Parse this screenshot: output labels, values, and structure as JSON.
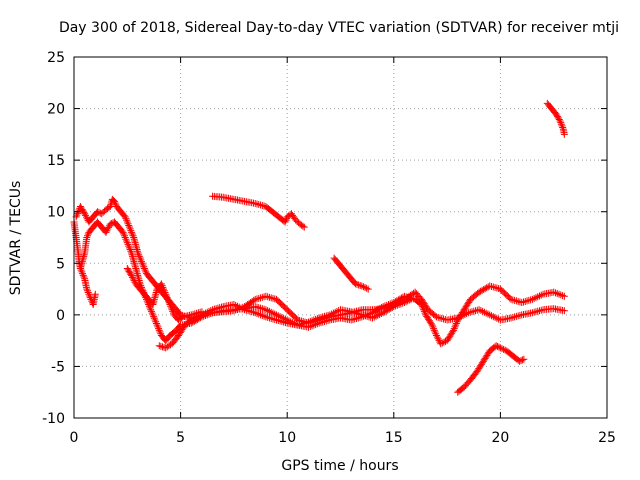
{
  "chart_data": {
    "type": "scatter",
    "title": "Day 300 of 2018, Sidereal Day-to-day VTEC variation (SDTVAR) for receiver mtji",
    "xlabel": "GPS time / hours",
    "ylabel": "SDTVAR / TECUs",
    "xlim": [
      0,
      25
    ],
    "ylim": [
      -10,
      25
    ],
    "xticks": [
      0,
      5,
      10,
      15,
      20,
      25
    ],
    "yticks": [
      -10,
      -5,
      0,
      5,
      10,
      15,
      20,
      25
    ],
    "xtick_labels": [
      "0",
      "5",
      "10",
      "15",
      "20",
      "25"
    ],
    "ytick_labels": [
      "-10",
      "-5",
      "0",
      "5",
      "10",
      "15",
      "20",
      "25"
    ],
    "grid": true,
    "marker": "+",
    "color": "#ff0000",
    "series": [
      {
        "name": "track-1",
        "points": [
          [
            0.0,
            9.0
          ],
          [
            0.1,
            7.5
          ],
          [
            0.2,
            6.0
          ],
          [
            0.25,
            5.0
          ],
          [
            0.3,
            4.5
          ],
          [
            0.4,
            4.0
          ],
          [
            0.5,
            3.5
          ],
          [
            0.55,
            3.0
          ],
          [
            0.6,
            2.5
          ],
          [
            0.7,
            2.0
          ],
          [
            0.8,
            1.5
          ],
          [
            0.9,
            1.0
          ],
          [
            1.0,
            2.0
          ]
        ]
      },
      {
        "name": "track-2",
        "points": [
          [
            0.1,
            9.5
          ],
          [
            0.2,
            10.0
          ],
          [
            0.3,
            10.5
          ],
          [
            0.5,
            9.8
          ],
          [
            0.7,
            9.0
          ],
          [
            0.9,
            9.5
          ],
          [
            1.1,
            10.0
          ],
          [
            1.3,
            9.8
          ],
          [
            1.5,
            10.2
          ],
          [
            1.7,
            10.5
          ],
          [
            1.8,
            11.2
          ],
          [
            1.9,
            11.0
          ],
          [
            2.0,
            10.5
          ],
          [
            2.2,
            10.0
          ],
          [
            2.4,
            9.5
          ],
          [
            2.6,
            8.5
          ],
          [
            2.8,
            7.5
          ],
          [
            3.0,
            6.0
          ],
          [
            3.2,
            5.0
          ],
          [
            3.4,
            4.0
          ],
          [
            3.6,
            3.5
          ],
          [
            3.8,
            3.0
          ],
          [
            4.0,
            2.5
          ],
          [
            4.2,
            2.0
          ],
          [
            4.4,
            1.5
          ],
          [
            4.6,
            1.0
          ],
          [
            4.8,
            0.5
          ],
          [
            5.0,
            0.0
          ],
          [
            5.5,
            -0.3
          ],
          [
            6.0,
            0.0
          ],
          [
            6.5,
            0.2
          ],
          [
            7.0,
            0.4
          ],
          [
            7.5,
            0.5
          ],
          [
            8.0,
            0.6
          ],
          [
            8.5,
            0.8
          ],
          [
            9.0,
            0.5
          ],
          [
            9.5,
            0.0
          ],
          [
            10.0,
            -0.5
          ],
          [
            10.5,
            -1.0
          ],
          [
            11.0,
            -1.2
          ],
          [
            11.5,
            -0.8
          ],
          [
            12.0,
            -0.5
          ],
          [
            12.5,
            -0.3
          ],
          [
            13.0,
            -0.5
          ],
          [
            13.5,
            -0.2
          ],
          [
            14.0,
            0.2
          ],
          [
            14.5,
            0.8
          ],
          [
            15.0,
            1.2
          ],
          [
            15.5,
            1.8
          ],
          [
            16.0,
            1.5
          ],
          [
            16.3,
            1.0
          ],
          [
            16.5,
            0.0
          ],
          [
            16.8,
            -1.0
          ],
          [
            17.0,
            -2.0
          ],
          [
            17.2,
            -2.8
          ],
          [
            17.5,
            -2.5
          ],
          [
            17.8,
            -1.5
          ],
          [
            18.0,
            -0.5
          ],
          [
            18.3,
            0.5
          ],
          [
            18.6,
            1.5
          ],
          [
            19.0,
            2.2
          ],
          [
            19.5,
            2.8
          ],
          [
            20.0,
            2.5
          ],
          [
            20.5,
            1.5
          ],
          [
            21.0,
            1.2
          ],
          [
            21.5,
            1.5
          ],
          [
            22.0,
            2.0
          ],
          [
            22.5,
            2.2
          ],
          [
            23.0,
            1.8
          ]
        ]
      },
      {
        "name": "track-3",
        "points": [
          [
            0.3,
            4.5
          ],
          [
            0.5,
            6.0
          ],
          [
            0.6,
            7.5
          ],
          [
            0.7,
            8.0
          ],
          [
            0.9,
            8.5
          ],
          [
            1.1,
            9.0
          ],
          [
            1.3,
            8.5
          ],
          [
            1.5,
            8.0
          ],
          [
            1.7,
            8.8
          ],
          [
            1.9,
            9.0
          ],
          [
            2.1,
            8.5
          ],
          [
            2.3,
            8.0
          ],
          [
            2.5,
            7.0
          ],
          [
            2.7,
            6.0
          ],
          [
            2.9,
            4.5
          ],
          [
            3.1,
            3.0
          ],
          [
            3.3,
            2.0
          ],
          [
            3.5,
            1.0
          ],
          [
            3.7,
            0.0
          ],
          [
            3.9,
            -1.0
          ],
          [
            4.1,
            -2.0
          ],
          [
            4.3,
            -2.5
          ],
          [
            4.5,
            -2.0
          ],
          [
            4.8,
            -1.5
          ],
          [
            5.0,
            -1.0
          ],
          [
            5.5,
            -0.8
          ],
          [
            6.0,
            -0.2
          ],
          [
            6.5,
            0.2
          ],
          [
            7.0,
            0.3
          ],
          [
            7.5,
            0.4
          ],
          [
            8.0,
            0.8
          ],
          [
            8.5,
            1.5
          ],
          [
            9.0,
            1.8
          ],
          [
            9.5,
            1.5
          ],
          [
            10.0,
            0.5
          ],
          [
            10.5,
            -0.5
          ],
          [
            11.0,
            -0.8
          ],
          [
            11.5,
            -0.5
          ],
          [
            12.0,
            -0.2
          ],
          [
            12.5,
            0.0
          ],
          [
            13.0,
            0.2
          ],
          [
            13.5,
            0.5
          ],
          [
            14.0,
            0.5
          ],
          [
            14.5,
            0.6
          ],
          [
            15.0,
            1.0
          ],
          [
            15.5,
            1.5
          ],
          [
            16.0,
            2.2
          ],
          [
            16.3,
            1.5
          ],
          [
            16.6,
            0.5
          ],
          [
            17.0,
            -0.2
          ],
          [
            17.5,
            -0.5
          ],
          [
            18.0,
            -0.3
          ],
          [
            18.5,
            0.2
          ],
          [
            19.0,
            0.5
          ],
          [
            19.5,
            0.0
          ],
          [
            20.0,
            -0.5
          ],
          [
            20.5,
            -0.3
          ],
          [
            21.0,
            0.0
          ],
          [
            21.5,
            0.2
          ],
          [
            22.0,
            0.5
          ],
          [
            22.5,
            0.6
          ],
          [
            23.0,
            0.4
          ]
        ]
      },
      {
        "name": "track-4",
        "points": [
          [
            2.5,
            4.5
          ],
          [
            2.7,
            3.8
          ],
          [
            2.9,
            3.0
          ],
          [
            3.1,
            2.5
          ],
          [
            3.3,
            2.0
          ],
          [
            3.5,
            1.5
          ],
          [
            3.7,
            1.0
          ],
          [
            3.9,
            2.5
          ],
          [
            4.1,
            3.0
          ],
          [
            4.3,
            2.0
          ],
          [
            4.5,
            1.0
          ],
          [
            4.7,
            0.0
          ],
          [
            4.9,
            -0.5
          ],
          [
            5.1,
            -0.2
          ],
          [
            5.5,
            0.0
          ],
          [
            6.0,
            0.3
          ]
        ]
      },
      {
        "name": "track-5",
        "points": [
          [
            4.0,
            -3.0
          ],
          [
            4.3,
            -3.2
          ],
          [
            4.6,
            -2.8
          ],
          [
            4.9,
            -2.0
          ],
          [
            5.2,
            -1.0
          ],
          [
            5.5,
            -0.5
          ],
          [
            6.0,
            0.0
          ],
          [
            6.5,
            0.5
          ],
          [
            7.0,
            0.8
          ],
          [
            7.5,
            1.0
          ],
          [
            8.0,
            0.5
          ],
          [
            8.5,
            0.2
          ],
          [
            9.0,
            -0.2
          ],
          [
            9.5,
            -0.5
          ],
          [
            10.0,
            -0.8
          ],
          [
            10.5,
            -1.0
          ],
          [
            11.0,
            -0.7
          ],
          [
            11.5,
            -0.3
          ],
          [
            12.0,
            0.0
          ],
          [
            12.5,
            0.5
          ],
          [
            13.0,
            0.3
          ],
          [
            13.5,
            0.0
          ],
          [
            14.0,
            -0.3
          ],
          [
            14.5,
            0.2
          ],
          [
            15.0,
            0.8
          ],
          [
            15.5,
            1.2
          ],
          [
            15.8,
            1.5
          ]
        ]
      },
      {
        "name": "track-6",
        "points": [
          [
            6.5,
            11.5
          ],
          [
            7.0,
            11.4
          ],
          [
            7.5,
            11.2
          ],
          [
            8.0,
            11.0
          ],
          [
            8.5,
            10.8
          ],
          [
            9.0,
            10.5
          ],
          [
            9.3,
            10.0
          ],
          [
            9.6,
            9.5
          ],
          [
            9.9,
            9.0
          ],
          [
            10.0,
            9.5
          ],
          [
            10.2,
            9.8
          ],
          [
            10.4,
            9.2
          ],
          [
            10.6,
            8.8
          ],
          [
            10.8,
            8.5
          ]
        ]
      },
      {
        "name": "track-7",
        "points": [
          [
            12.2,
            5.5
          ],
          [
            12.4,
            5.0
          ],
          [
            12.6,
            4.5
          ],
          [
            12.8,
            4.0
          ],
          [
            13.0,
            3.5
          ],
          [
            13.2,
            3.0
          ],
          [
            13.5,
            2.8
          ],
          [
            13.8,
            2.5
          ]
        ]
      },
      {
        "name": "track-8",
        "points": [
          [
            18.0,
            -7.5
          ],
          [
            18.3,
            -7.0
          ],
          [
            18.6,
            -6.3
          ],
          [
            18.9,
            -5.5
          ],
          [
            19.2,
            -4.5
          ],
          [
            19.5,
            -3.5
          ],
          [
            19.8,
            -3.0
          ],
          [
            20.0,
            -3.2
          ],
          [
            20.3,
            -3.5
          ],
          [
            20.6,
            -4.0
          ],
          [
            20.9,
            -4.5
          ],
          [
            21.1,
            -4.3
          ]
        ]
      },
      {
        "name": "track-9",
        "points": [
          [
            22.2,
            20.5
          ],
          [
            22.4,
            20.0
          ],
          [
            22.6,
            19.5
          ],
          [
            22.8,
            18.8
          ],
          [
            22.95,
            18.0
          ],
          [
            23.0,
            17.5
          ]
        ]
      }
    ]
  }
}
